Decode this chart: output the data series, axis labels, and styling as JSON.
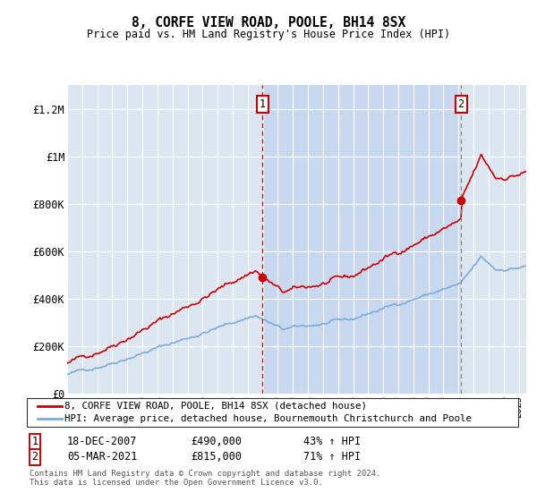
{
  "title": "8, CORFE VIEW ROAD, POOLE, BH14 8SX",
  "subtitle": "Price paid vs. HM Land Registry's House Price Index (HPI)",
  "ylim": [
    0,
    1300000
  ],
  "yticks": [
    0,
    200000,
    400000,
    600000,
    800000,
    1000000,
    1200000
  ],
  "ytick_labels": [
    "£0",
    "£200K",
    "£400K",
    "£600K",
    "£800K",
    "£1M",
    "£1.2M"
  ],
  "background_color": "#ffffff",
  "plot_bg_color": "#dce6f1",
  "plot_bg_shade": "#c8d8ee",
  "grid_color": "#ffffff",
  "hpi_line_color": "#7aabdc",
  "price_line_color": "#cc0000",
  "transaction1_x": 2007.97,
  "transaction1_y": 490000,
  "transaction1_label": "1",
  "transaction2_x": 2021.17,
  "transaction2_y": 815000,
  "transaction2_label": "2",
  "legend_label_price": "8, CORFE VIEW ROAD, POOLE, BH14 8SX (detached house)",
  "legend_label_hpi": "HPI: Average price, detached house, Bournemouth Christchurch and Poole",
  "note1_label": "1",
  "note1_date": "18-DEC-2007",
  "note1_price": "£490,000",
  "note1_change": "43% ↑ HPI",
  "note2_label": "2",
  "note2_date": "05-MAR-2021",
  "note2_price": "£815,000",
  "note2_change": "71% ↑ HPI",
  "footer": "Contains HM Land Registry data © Crown copyright and database right 2024.\nThis data is licensed under the Open Government Licence v3.0.",
  "xmin": 1995,
  "xmax": 2025.5
}
